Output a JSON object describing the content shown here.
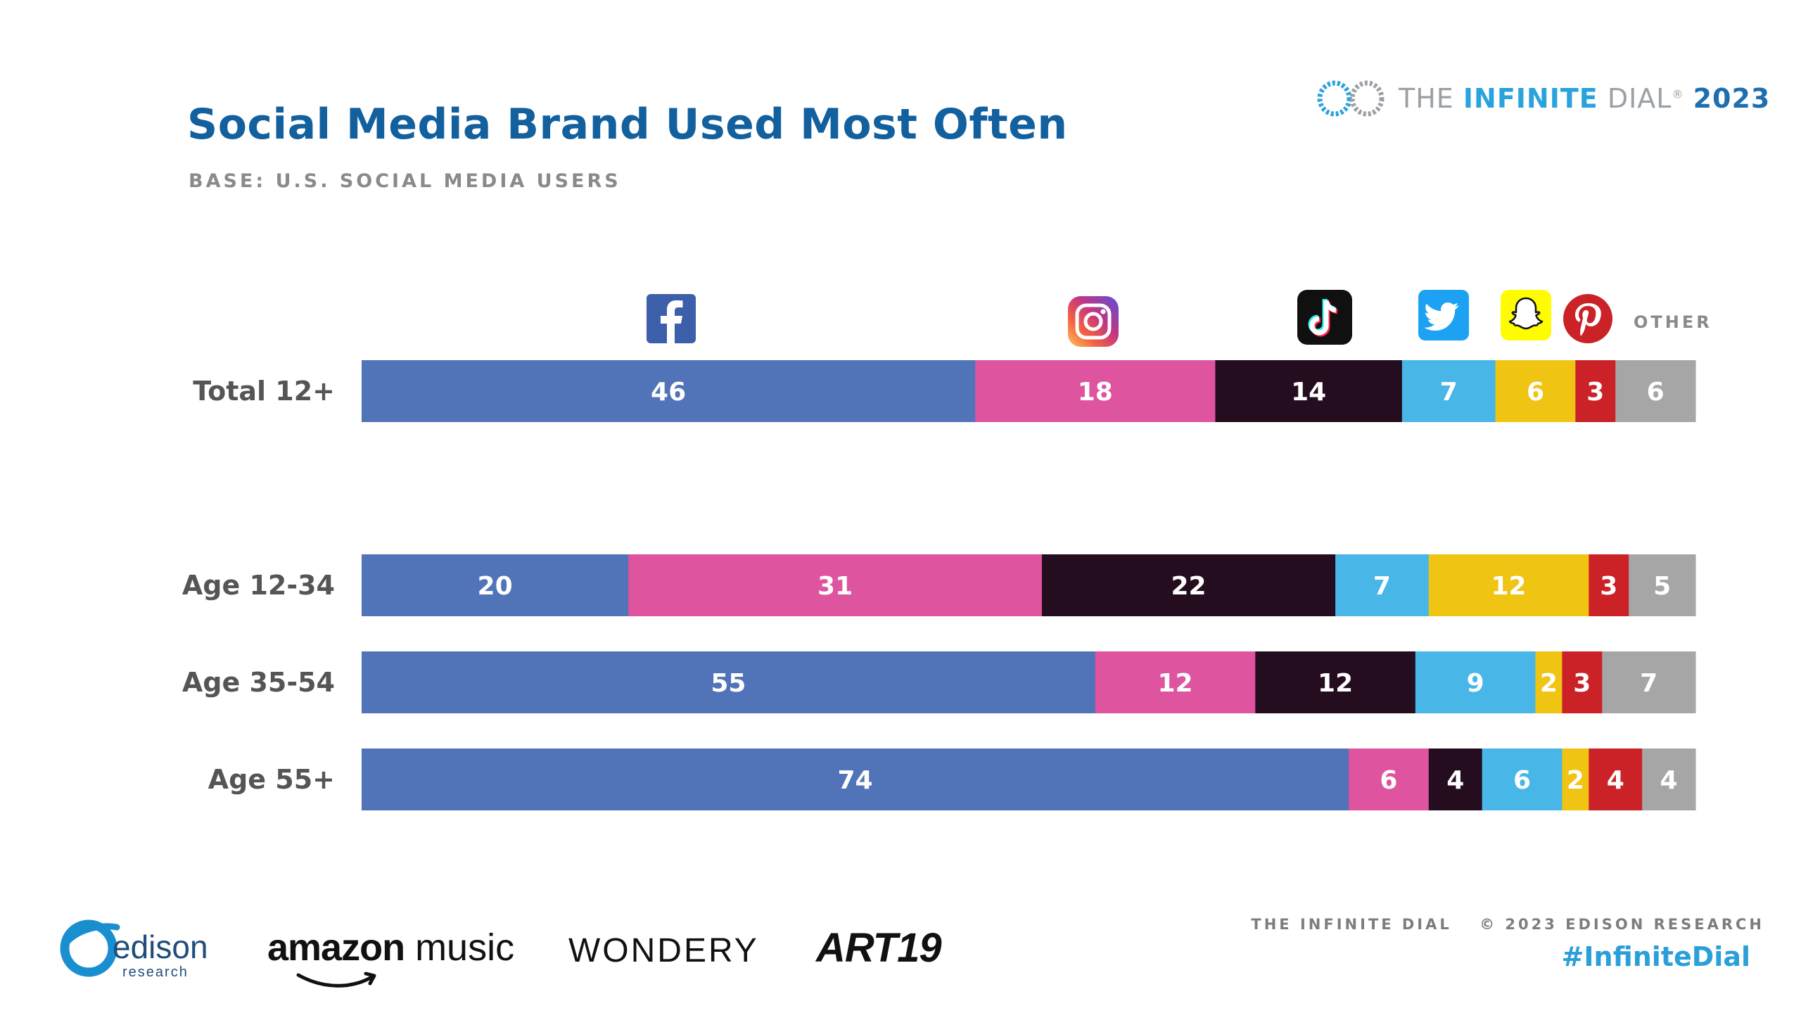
{
  "header": {
    "title": "Social Media Brand Used Most Often",
    "subtitle": "BASE: U.S. SOCIAL MEDIA USERS"
  },
  "brand": {
    "the": "THE",
    "infinite": "INFINITE",
    "dial": "DIAL",
    "reg": "®",
    "year": "2023"
  },
  "legend": {
    "other_label": "OTHER",
    "icons": [
      "facebook-icon",
      "instagram-icon",
      "tiktok-icon",
      "twitter-icon",
      "snapchat-icon",
      "pinterest-icon"
    ]
  },
  "chart_data": {
    "type": "bar",
    "orientation": "horizontal",
    "stacked": true,
    "title": "Social Media Brand Used Most Often",
    "subtitle": "BASE: U.S. SOCIAL MEDIA USERS",
    "categories": [
      "Total 12+",
      "Age 12-34",
      "Age 35-54",
      "Age 55+"
    ],
    "series": [
      {
        "name": "Facebook",
        "color": "#5173b8",
        "values": [
          46,
          20,
          55,
          74
        ]
      },
      {
        "name": "Instagram",
        "color": "#de549e",
        "values": [
          18,
          31,
          12,
          6
        ]
      },
      {
        "name": "TikTok",
        "color": "#240d1f",
        "values": [
          14,
          22,
          12,
          4
        ]
      },
      {
        "name": "Twitter",
        "color": "#48b6e6",
        "values": [
          7,
          7,
          9,
          6
        ]
      },
      {
        "name": "Snapchat",
        "color": "#efc413",
        "values": [
          6,
          12,
          2,
          2
        ]
      },
      {
        "name": "Pinterest",
        "color": "#cb2228",
        "values": [
          3,
          3,
          3,
          4
        ]
      },
      {
        "name": "Other",
        "color": "#a6a6a6",
        "values": [
          6,
          5,
          7,
          4
        ]
      }
    ],
    "xlabel": "",
    "ylabel": "",
    "legend": "icons above bars"
  },
  "footer": {
    "credit_left": "THE INFINITE DIAL",
    "credit_right": "© 2023 EDISON RESEARCH",
    "hashtag": "#InfiniteDial"
  },
  "sponsors": {
    "edison": "edison",
    "edison_sub": "research",
    "amazon_a": "amazon",
    "amazon_b": "music",
    "wondery": "WONDERY",
    "art19": "ART19"
  }
}
